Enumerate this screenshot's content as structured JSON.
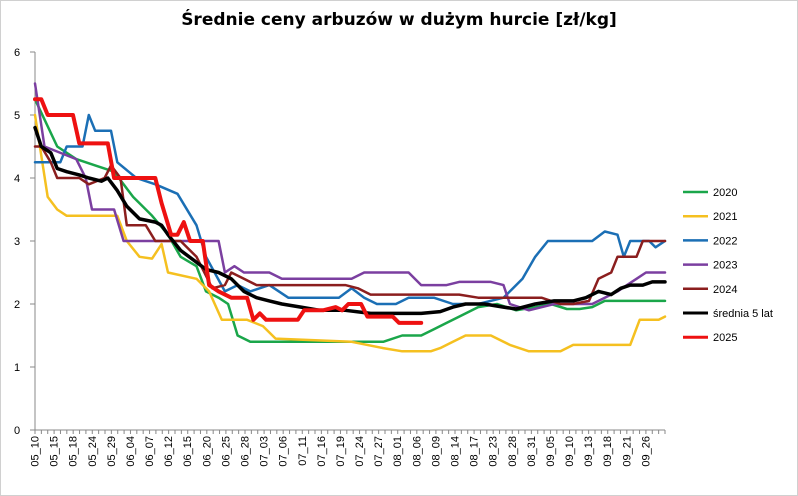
{
  "chart_data": {
    "type": "line",
    "title": "Średnie ceny arbuzów w dużym hurcie [zł/kg]",
    "xlabel": "",
    "ylabel": "",
    "ylim": [
      0,
      6
    ],
    "yticks": [
      "0",
      "1",
      "2",
      "3",
      "4",
      "5",
      "6"
    ],
    "grid": false,
    "legend_position": "right",
    "x_tick_labels": [
      "05_10",
      "05_15",
      "05_18",
      "05_24",
      "05_29",
      "06_04",
      "06_07",
      "06_12",
      "06_15",
      "06_20",
      "06_25",
      "06_28",
      "07_03",
      "07_06",
      "07_11",
      "07_16",
      "07_19",
      "07_24",
      "07_27",
      "08_01",
      "08_06",
      "08_09",
      "08_14",
      "08_17",
      "08_23",
      "08_28",
      "08_31",
      "09_05",
      "09_10",
      "09_13",
      "09_18",
      "09_21",
      "09_26"
    ],
    "n_points": 200,
    "series": [
      {
        "name": "2020",
        "color": "#1aa64a",
        "width": 2.5,
        "points": [
          [
            0,
            5.25
          ],
          [
            7,
            4.5
          ],
          [
            13,
            4.3
          ],
          [
            19,
            4.2
          ],
          [
            25,
            4.1
          ],
          [
            31,
            3.7
          ],
          [
            37,
            3.4
          ],
          [
            42,
            3.1
          ],
          [
            46,
            2.75
          ],
          [
            51,
            2.6
          ],
          [
            54,
            2.2
          ],
          [
            58,
            2.1
          ],
          [
            61,
            2.0
          ],
          [
            64,
            1.5
          ],
          [
            68,
            1.4
          ],
          [
            71,
            1.4
          ],
          [
            82,
            1.4
          ],
          [
            100,
            1.4
          ],
          [
            110,
            1.4
          ],
          [
            116,
            1.5
          ],
          [
            122,
            1.5
          ],
          [
            126,
            1.6
          ],
          [
            130,
            1.7
          ],
          [
            134,
            1.8
          ],
          [
            140,
            1.95
          ],
          [
            146,
            2.0
          ],
          [
            152,
            1.9
          ],
          [
            158,
            1.95
          ],
          [
            163,
            2.0
          ],
          [
            168,
            1.92
          ],
          [
            172,
            1.92
          ],
          [
            176,
            1.95
          ],
          [
            180,
            2.05
          ],
          [
            190,
            2.05
          ],
          [
            199,
            2.05
          ]
        ]
      },
      {
        "name": "2021",
        "color": "#f5c020",
        "width": 2.5,
        "points": [
          [
            0,
            5.0
          ],
          [
            4,
            3.7
          ],
          [
            7,
            3.5
          ],
          [
            10,
            3.4
          ],
          [
            26,
            3.4
          ],
          [
            29,
            3.0
          ],
          [
            33,
            2.75
          ],
          [
            37,
            2.72
          ],
          [
            40,
            2.95
          ],
          [
            42,
            2.5
          ],
          [
            51,
            2.4
          ],
          [
            55,
            2.2
          ],
          [
            59,
            1.75
          ],
          [
            67,
            1.75
          ],
          [
            72,
            1.65
          ],
          [
            76,
            1.45
          ],
          [
            100,
            1.4
          ],
          [
            110,
            1.3
          ],
          [
            116,
            1.25
          ],
          [
            125,
            1.25
          ],
          [
            128,
            1.3
          ],
          [
            132,
            1.4
          ],
          [
            136,
            1.5
          ],
          [
            144,
            1.5
          ],
          [
            150,
            1.35
          ],
          [
            156,
            1.25
          ],
          [
            166,
            1.25
          ],
          [
            170,
            1.35
          ],
          [
            188,
            1.35
          ],
          [
            191,
            1.75
          ],
          [
            197,
            1.75
          ],
          [
            199,
            1.8
          ]
        ]
      },
      {
        "name": "2022",
        "color": "#1b6fb5",
        "width": 2.5,
        "points": [
          [
            0,
            4.25
          ],
          [
            8,
            4.25
          ],
          [
            10,
            4.5
          ],
          [
            15,
            4.5
          ],
          [
            17,
            5.0
          ],
          [
            19,
            4.75
          ],
          [
            24,
            4.75
          ],
          [
            26,
            4.25
          ],
          [
            32,
            4.0
          ],
          [
            38,
            3.9
          ],
          [
            45,
            3.75
          ],
          [
            51,
            3.25
          ],
          [
            54,
            2.75
          ],
          [
            60,
            2.2
          ],
          [
            64,
            2.3
          ],
          [
            68,
            2.2
          ],
          [
            74,
            2.3
          ],
          [
            80,
            2.1
          ],
          [
            96,
            2.1
          ],
          [
            100,
            2.25
          ],
          [
            104,
            2.1
          ],
          [
            108,
            2.0
          ],
          [
            114,
            2.0
          ],
          [
            118,
            2.1
          ],
          [
            126,
            2.1
          ],
          [
            132,
            2.0
          ],
          [
            140,
            2.0
          ],
          [
            148,
            2.1
          ],
          [
            154,
            2.4
          ],
          [
            158,
            2.75
          ],
          [
            162,
            3.0
          ],
          [
            170,
            3.0
          ],
          [
            176,
            3.0
          ],
          [
            180,
            3.15
          ],
          [
            184,
            3.1
          ],
          [
            186,
            2.75
          ],
          [
            188,
            3.0
          ],
          [
            194,
            3.0
          ],
          [
            196,
            2.9
          ],
          [
            199,
            3.0
          ]
        ]
      },
      {
        "name": "2023",
        "color": "#7b3fa0",
        "width": 2.5,
        "points": [
          [
            0,
            5.5
          ],
          [
            3,
            4.5
          ],
          [
            13,
            4.3
          ],
          [
            16,
            4.0
          ],
          [
            18,
            3.5
          ],
          [
            25,
            3.5
          ],
          [
            28,
            3.0
          ],
          [
            42,
            3.0
          ],
          [
            49,
            3.0
          ],
          [
            55,
            3.0
          ],
          [
            58,
            3.0
          ],
          [
            60,
            2.5
          ],
          [
            63,
            2.6
          ],
          [
            66,
            2.5
          ],
          [
            74,
            2.5
          ],
          [
            78,
            2.4
          ],
          [
            92,
            2.4
          ],
          [
            100,
            2.4
          ],
          [
            104,
            2.5
          ],
          [
            118,
            2.5
          ],
          [
            122,
            2.3
          ],
          [
            130,
            2.3
          ],
          [
            134,
            2.35
          ],
          [
            144,
            2.35
          ],
          [
            148,
            2.3
          ],
          [
            150,
            2.0
          ],
          [
            156,
            1.9
          ],
          [
            164,
            2.0
          ],
          [
            170,
            2.0
          ],
          [
            176,
            2.0
          ],
          [
            180,
            2.1
          ],
          [
            184,
            2.2
          ],
          [
            187,
            2.3
          ],
          [
            190,
            2.4
          ],
          [
            193,
            2.5
          ],
          [
            199,
            2.5
          ]
        ]
      },
      {
        "name": "2024",
        "color": "#8b1e1e",
        "width": 2.5,
        "points": [
          [
            0,
            4.5
          ],
          [
            2,
            4.5
          ],
          [
            5,
            4.25
          ],
          [
            7,
            4.0
          ],
          [
            14,
            4.0
          ],
          [
            17,
            3.9
          ],
          [
            22,
            4.0
          ],
          [
            24,
            4.2
          ],
          [
            27,
            4.0
          ],
          [
            29,
            3.25
          ],
          [
            35,
            3.25
          ],
          [
            38,
            3.0
          ],
          [
            46,
            3.0
          ],
          [
            51,
            2.75
          ],
          [
            56,
            2.25
          ],
          [
            60,
            2.3
          ],
          [
            62,
            2.5
          ],
          [
            66,
            2.4
          ],
          [
            70,
            2.3
          ],
          [
            80,
            2.3
          ],
          [
            90,
            2.3
          ],
          [
            98,
            2.3
          ],
          [
            102,
            2.25
          ],
          [
            106,
            2.15
          ],
          [
            124,
            2.15
          ],
          [
            134,
            2.15
          ],
          [
            140,
            2.1
          ],
          [
            152,
            2.1
          ],
          [
            160,
            2.1
          ],
          [
            166,
            2.0
          ],
          [
            170,
            2.0
          ],
          [
            175,
            2.05
          ],
          [
            178,
            2.4
          ],
          [
            182,
            2.5
          ],
          [
            184,
            2.75
          ],
          [
            190,
            2.75
          ],
          [
            192,
            3.0
          ],
          [
            199,
            3.0
          ]
        ]
      },
      {
        "name": "średnia 5 lat",
        "color": "#000000",
        "width": 3.5,
        "points": [
          [
            0,
            4.8
          ],
          [
            2,
            4.5
          ],
          [
            5,
            4.4
          ],
          [
            7,
            4.15
          ],
          [
            10,
            4.1
          ],
          [
            14,
            4.05
          ],
          [
            17,
            4.0
          ],
          [
            21,
            3.95
          ],
          [
            23,
            4.0
          ],
          [
            26,
            3.8
          ],
          [
            29,
            3.55
          ],
          [
            33,
            3.35
          ],
          [
            38,
            3.3
          ],
          [
            40,
            3.25
          ],
          [
            42,
            3.1
          ],
          [
            46,
            2.85
          ],
          [
            50,
            2.7
          ],
          [
            54,
            2.55
          ],
          [
            58,
            2.5
          ],
          [
            62,
            2.4
          ],
          [
            66,
            2.2
          ],
          [
            70,
            2.1
          ],
          [
            74,
            2.05
          ],
          [
            78,
            2.0
          ],
          [
            84,
            1.95
          ],
          [
            90,
            1.9
          ],
          [
            98,
            1.9
          ],
          [
            106,
            1.85
          ],
          [
            114,
            1.85
          ],
          [
            122,
            1.85
          ],
          [
            128,
            1.88
          ],
          [
            132,
            1.95
          ],
          [
            136,
            2.0
          ],
          [
            142,
            2.0
          ],
          [
            148,
            1.95
          ],
          [
            152,
            1.92
          ],
          [
            158,
            2.0
          ],
          [
            164,
            2.05
          ],
          [
            170,
            2.05
          ],
          [
            174,
            2.1
          ],
          [
            178,
            2.2
          ],
          [
            182,
            2.15
          ],
          [
            185,
            2.25
          ],
          [
            188,
            2.3
          ],
          [
            192,
            2.3
          ],
          [
            195,
            2.35
          ],
          [
            199,
            2.35
          ]
        ]
      },
      {
        "name": "2025",
        "color": "#ee1111",
        "width": 4,
        "points": [
          [
            0,
            5.25
          ],
          [
            2,
            5.25
          ],
          [
            4,
            5.0
          ],
          [
            12,
            5.0
          ],
          [
            14,
            4.55
          ],
          [
            23,
            4.55
          ],
          [
            25,
            4.0
          ],
          [
            38,
            4.0
          ],
          [
            40,
            3.6
          ],
          [
            43,
            3.1
          ],
          [
            45,
            3.1
          ],
          [
            47,
            3.3
          ],
          [
            49,
            3.0
          ],
          [
            53,
            3.0
          ],
          [
            55,
            2.3
          ],
          [
            58,
            2.2
          ],
          [
            62,
            2.1
          ],
          [
            67,
            2.1
          ],
          [
            69,
            1.75
          ],
          [
            71,
            1.85
          ],
          [
            73,
            1.75
          ],
          [
            83,
            1.75
          ],
          [
            85,
            1.9
          ],
          [
            91,
            1.9
          ],
          [
            95,
            1.95
          ],
          [
            97,
            1.9
          ],
          [
            99,
            2.0
          ],
          [
            103,
            2.0
          ],
          [
            105,
            1.8
          ],
          [
            113,
            1.8
          ],
          [
            115,
            1.7
          ],
          [
            122,
            1.7
          ]
        ]
      }
    ]
  }
}
